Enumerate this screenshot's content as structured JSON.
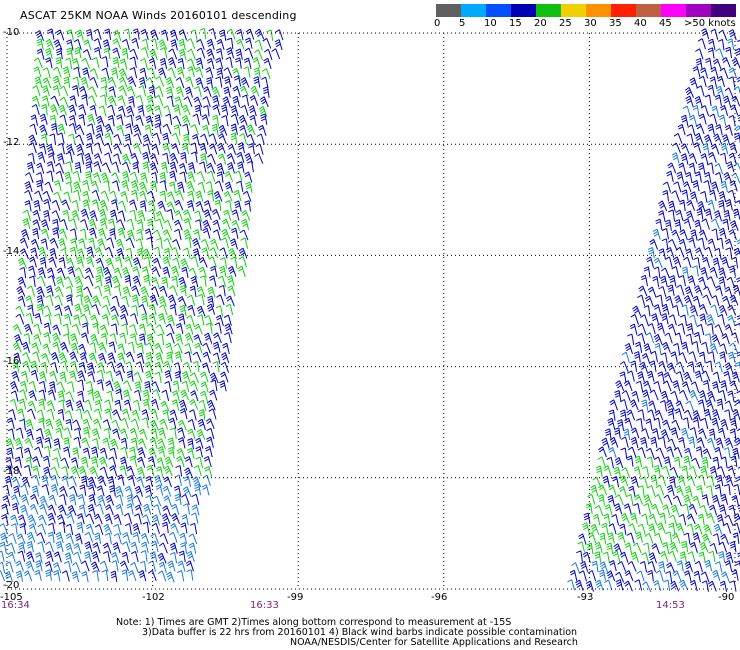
{
  "title": "ASCAT 25KM NOAA Winds 20160101 descending",
  "colors": {
    "blue": "#0000c8",
    "green": "#10d010",
    "lightblue": "#1878e0",
    "grid": "#000000"
  },
  "speed_scale": {
    "colors": [
      "#606060",
      "#00a8ff",
      "#0050ff",
      "#0000b4",
      "#10c010",
      "#f0d000",
      "#ff9000",
      "#ff2000",
      "#c06040",
      "#ff00ff",
      "#a000c0",
      "#400080"
    ],
    "labels": [
      "0",
      "5",
      "10",
      "15",
      "20",
      "25",
      "30",
      "35",
      "40",
      "45",
      ">50 knots"
    ]
  },
  "map": {
    "lat_labels": [
      "-10",
      "-12",
      "-14",
      "-16",
      "-18",
      "-20"
    ],
    "lon_labels": [
      "-105",
      "-102",
      "-99",
      "-96",
      "-93",
      "-90"
    ],
    "lat_range": [
      -20,
      -10
    ],
    "lon_range": [
      -105,
      -90
    ]
  },
  "time_labels": [
    "16:34",
    "16:33",
    "14:53"
  ],
  "notes": [
    "Note: 1) Times are GMT 2)Times along bottom correspond to measurement at -15S",
    "3)Data buffer is 22 hrs from 20160101 4) Black wind barbs indicate possible contamination",
    "NOAA/NESDIS/Center for Satellite Applications and Research"
  ]
}
